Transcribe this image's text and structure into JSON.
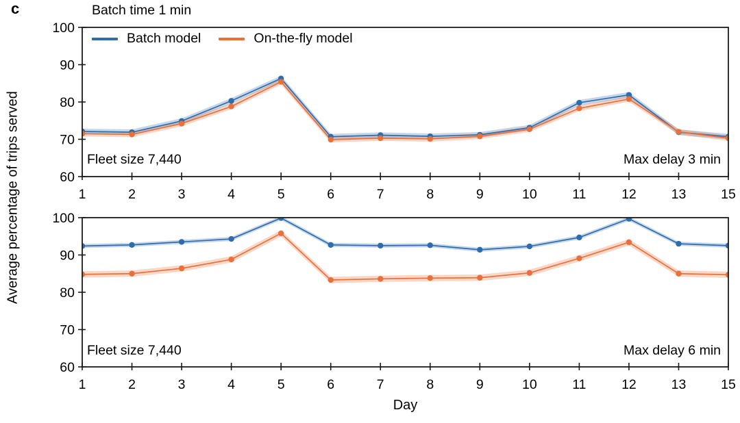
{
  "panel_label": "c",
  "title": "Batch time 1 min",
  "ylabel": "Average percentage of trips served",
  "xlabel": "Day",
  "colors": {
    "batch_model": "#2e6cab",
    "on_the_fly_model": "#e8713b",
    "axis": "#1a1a1a",
    "text": "#000000"
  },
  "chart_data": [
    {
      "type": "line",
      "title": "Batch time 1 min",
      "subplot": "Max delay 3 min",
      "categories": [
        1,
        2,
        3,
        4,
        5,
        6,
        7,
        8,
        9,
        10,
        11,
        12,
        13,
        15
      ],
      "series": [
        {
          "name": "Batch model",
          "color": "#2e6cab",
          "band_halfwidth": 0.75,
          "values": [
            72.1,
            71.9,
            74.9,
            80.3,
            86.3,
            70.7,
            71.1,
            70.8,
            71.2,
            73.1,
            79.8,
            81.9,
            71.9,
            70.7
          ]
        },
        {
          "name": "On-the-fly model",
          "color": "#e8713b",
          "band_halfwidth": 0.75,
          "values": [
            71.5,
            71.3,
            74.2,
            78.8,
            85.4,
            69.9,
            70.3,
            70.1,
            70.8,
            72.7,
            78.3,
            80.8,
            72.0,
            70.3
          ]
        }
      ],
      "annotations": {
        "left": "Fleet size 7,440",
        "right": "Max delay 3 min"
      },
      "xlabel": "",
      "ylabel": "",
      "ylim": [
        60,
        100
      ],
      "yticks": [
        60,
        70,
        80,
        90,
        100
      ],
      "grid": false,
      "legend_position": "upper-left-inside"
    },
    {
      "type": "line",
      "title": "",
      "subplot": "Max delay 6 min",
      "categories": [
        1,
        2,
        3,
        4,
        5,
        6,
        7,
        8,
        9,
        10,
        11,
        12,
        13,
        15
      ],
      "series": [
        {
          "name": "Batch model",
          "color": "#2e6cab",
          "band_halfwidth": 0.55,
          "values": [
            92.4,
            92.7,
            93.5,
            94.3,
            99.9,
            92.7,
            92.5,
            92.6,
            91.4,
            92.3,
            94.7,
            99.7,
            93.0,
            92.5
          ]
        },
        {
          "name": "On-the-fly model",
          "color": "#e8713b",
          "band_halfwidth": 0.85,
          "values": [
            84.8,
            85.0,
            86.4,
            88.8,
            95.8,
            83.3,
            83.6,
            83.8,
            83.9,
            85.2,
            89.1,
            93.4,
            85.0,
            84.7
          ]
        }
      ],
      "annotations": {
        "left": "Fleet size 7,440",
        "right": "Max delay 6 min"
      },
      "xlabel": "Day",
      "ylabel": "",
      "ylim": [
        60,
        100
      ],
      "yticks": [
        60,
        70,
        80,
        90,
        100
      ],
      "grid": false,
      "legend_position": "none"
    }
  ]
}
